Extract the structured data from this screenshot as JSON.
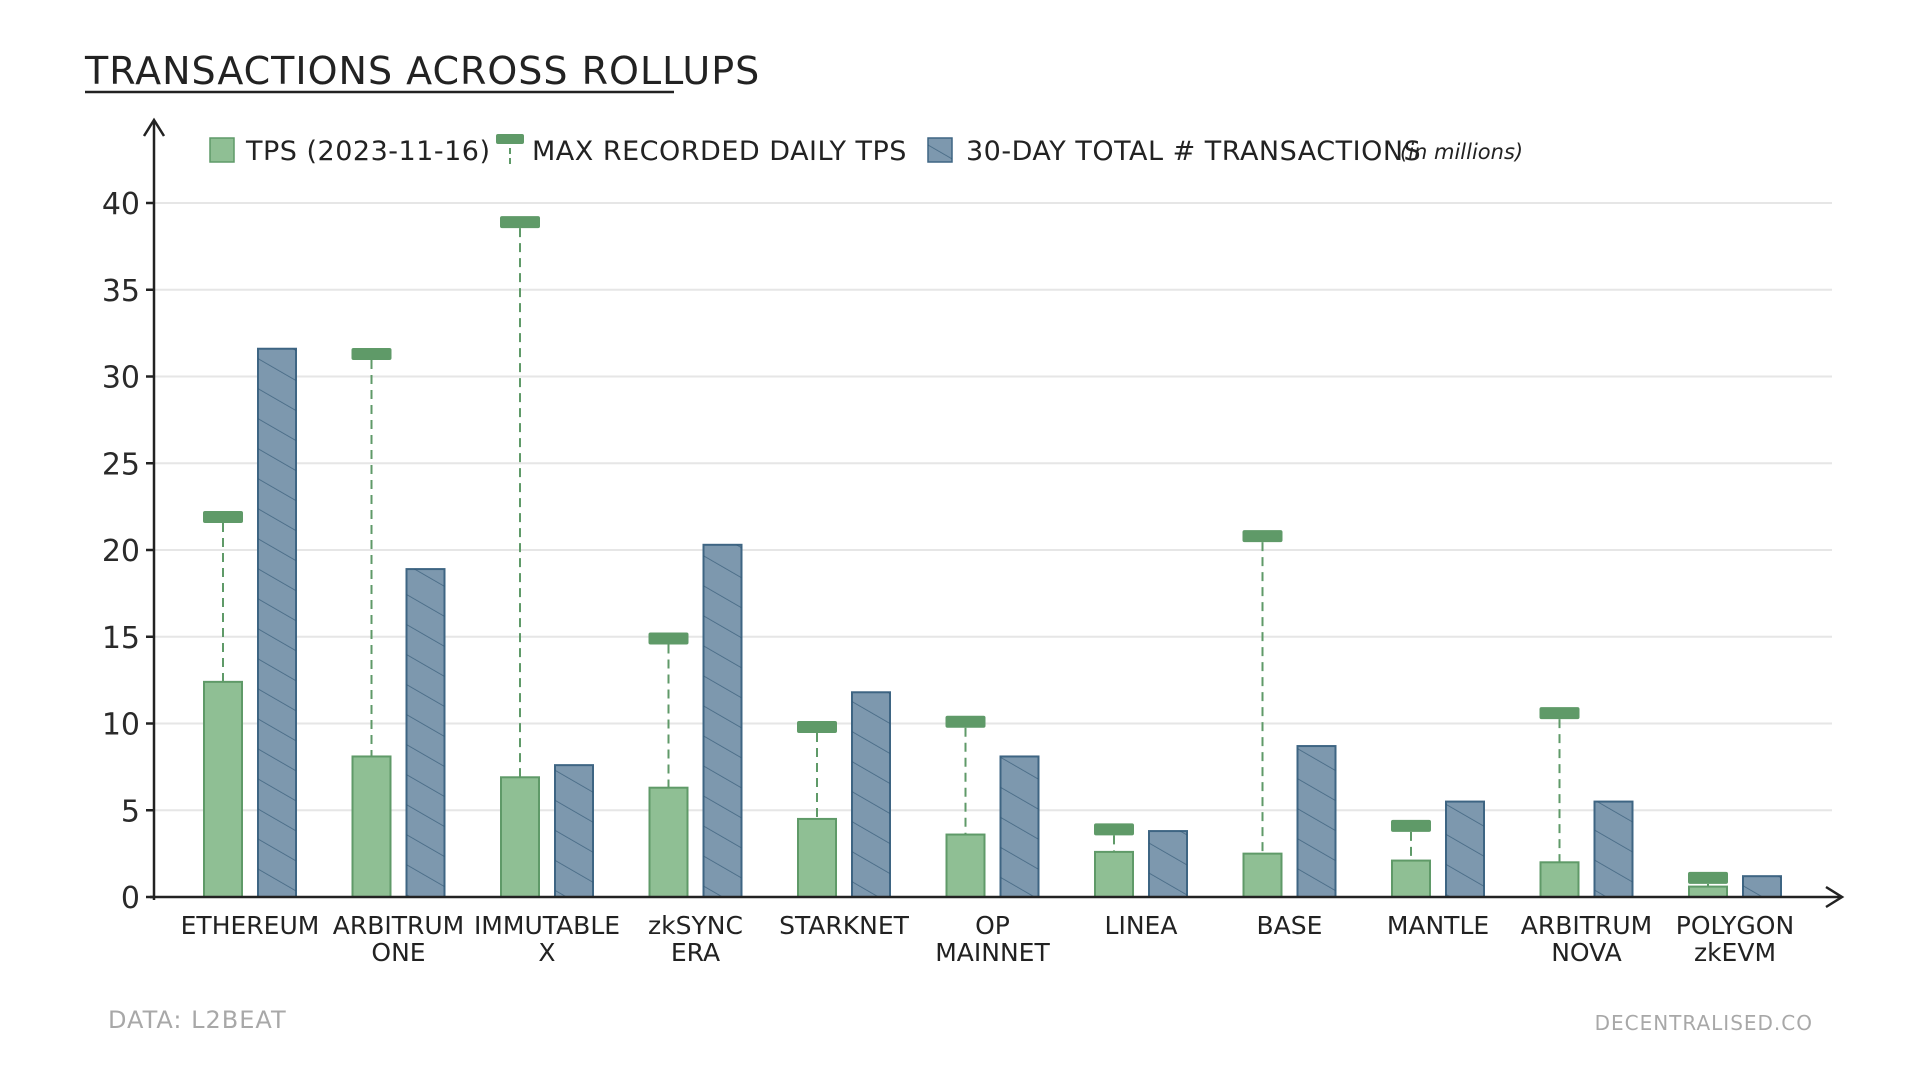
{
  "chart_data": {
    "type": "bar",
    "title": "TRANSACTIONS ACROSS ROLLUPS",
    "categories": [
      [
        "ETHEREUM"
      ],
      [
        "ARBITRUM",
        "ONE"
      ],
      [
        "IMMUTABLE",
        "X"
      ],
      [
        "zkSYNC",
        "ERA"
      ],
      [
        "STARKNET"
      ],
      [
        "OP",
        "MAINNET"
      ],
      [
        "LINEA"
      ],
      [
        "BASE"
      ],
      [
        "MANTLE"
      ],
      [
        "ARBITRUM",
        "NOVA"
      ],
      [
        "POLYGON",
        "zkEVM"
      ]
    ],
    "series": [
      {
        "name": "TPS (2023-11-16)",
        "color": "#8fbf94",
        "edge": "#5f9a68",
        "values": [
          12.4,
          8.1,
          6.9,
          6.3,
          4.5,
          3.6,
          2.6,
          2.5,
          2.1,
          2.0,
          0.6
        ]
      },
      {
        "name": "MAX RECORDED DAILY TPS",
        "color": "#5f9a68",
        "values": [
          21.9,
          31.3,
          38.9,
          14.9,
          9.8,
          10.1,
          3.9,
          20.8,
          4.1,
          10.6,
          1.1
        ]
      },
      {
        "name": "30-DAY TOTAL # TRANSACTIONS",
        "unit": "(in millions)",
        "color": "#7d98ae",
        "edge": "#3e6583",
        "values": [
          31.6,
          18.9,
          7.6,
          20.3,
          11.8,
          8.1,
          3.8,
          8.7,
          5.5,
          5.5,
          1.2
        ]
      }
    ],
    "ylim": [
      0,
      40
    ],
    "yticks": [
      0,
      5,
      10,
      15,
      20,
      25,
      30,
      35,
      40
    ],
    "xlabel": "",
    "ylabel": "",
    "grid": true,
    "legend": "top"
  },
  "footer": {
    "source": "DATA:  L2BEAT",
    "credit": "DECENTRALISED.CO"
  }
}
